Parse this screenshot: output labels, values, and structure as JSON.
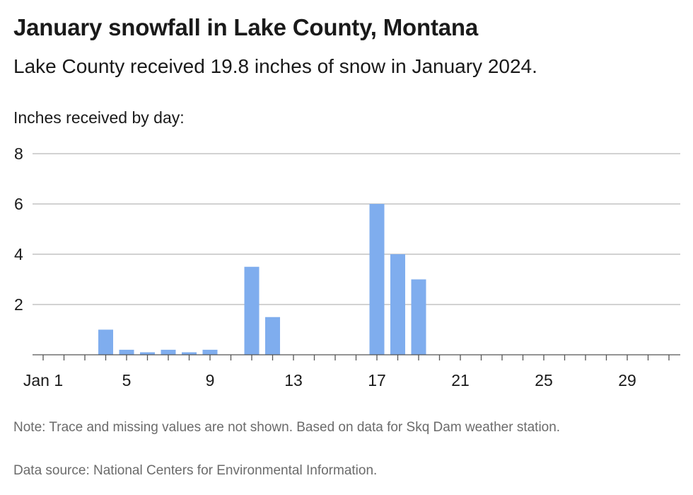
{
  "chart_data": {
    "type": "bar",
    "title": "January snowfall in Lake County, Montana",
    "subtitle": "Lake County received 19.8 inches of snow in January 2024.",
    "ylabel": "Inches received by day:",
    "xlabel": "",
    "ylim": [
      0,
      8
    ],
    "yticks": [
      2,
      4,
      6,
      8
    ],
    "xlim": [
      1,
      31
    ],
    "xticks": [
      {
        "day": 1,
        "label": "Jan 1"
      },
      {
        "day": 5,
        "label": "5"
      },
      {
        "day": 9,
        "label": "9"
      },
      {
        "day": 13,
        "label": "13"
      },
      {
        "day": 17,
        "label": "17"
      },
      {
        "day": 21,
        "label": "21"
      },
      {
        "day": 25,
        "label": "25"
      },
      {
        "day": 29,
        "label": "29"
      }
    ],
    "days": [
      4,
      5,
      6,
      7,
      8,
      9,
      11,
      12,
      17,
      18,
      19
    ],
    "values": [
      1.0,
      0.2,
      0.1,
      0.2,
      0.1,
      0.2,
      3.5,
      1.5,
      6.0,
      4.0,
      3.0
    ],
    "grid": true,
    "bar_color": "#7fadee",
    "note": "Note: Trace and missing values are not shown. Based on data for Skq Dam weather station.",
    "source": "Data source: National Centers for Environmental Information."
  }
}
